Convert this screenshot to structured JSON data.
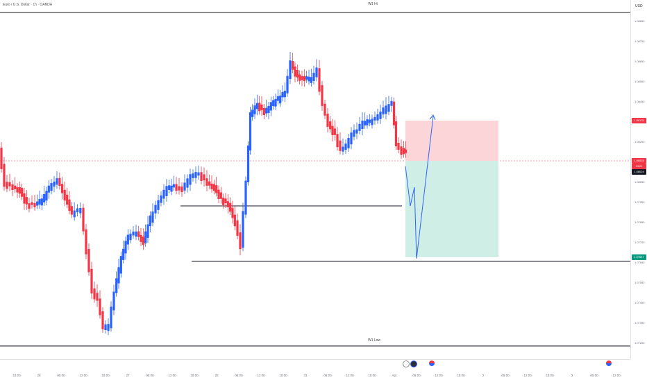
{
  "header": {
    "symbol_title": "Euro / U.S. Dollar · 1h · OANDA"
  },
  "axis": {
    "currency": "USD",
    "y_ticks": [
      "1.08850",
      "1.08750",
      "1.08650",
      "1.08550",
      "1.08450",
      "1.08350",
      "1.08250",
      "1.08150",
      "1.08050",
      "1.07950",
      "1.07850",
      "1.07750",
      "1.07650",
      "1.07550",
      "1.07450",
      "1.07350",
      "1.07250"
    ],
    "x_ticks": [
      "18:00",
      "26",
      "06:00",
      "12:00",
      "18:00",
      "27",
      "06:00",
      "12:00",
      "18:00",
      "28",
      "06:00",
      "12:00",
      "18:00",
      "31",
      "06:00",
      "12:00",
      "18:00",
      "Apr",
      "06:00",
      "12:00",
      "18:00",
      "2",
      "06:00",
      "12:00",
      "18:00",
      "3",
      "06:00",
      "12:00"
    ]
  },
  "price_tags": {
    "target_high": "1.08176",
    "current_price": "1.08025",
    "countdown": "13:21",
    "entry": "1.08024",
    "target_low": "1.07647"
  },
  "labels": {
    "weekly_high": "W1 Hi",
    "weekly_low": "W1 Low"
  },
  "colors": {
    "up": "#2962ff",
    "down": "#f23645",
    "stop_zone": "#fbd5d8",
    "target_zone": "#cfeee6",
    "tag_red": "#f23645",
    "tag_dark": "#131722",
    "tag_green": "#089981"
  }
}
